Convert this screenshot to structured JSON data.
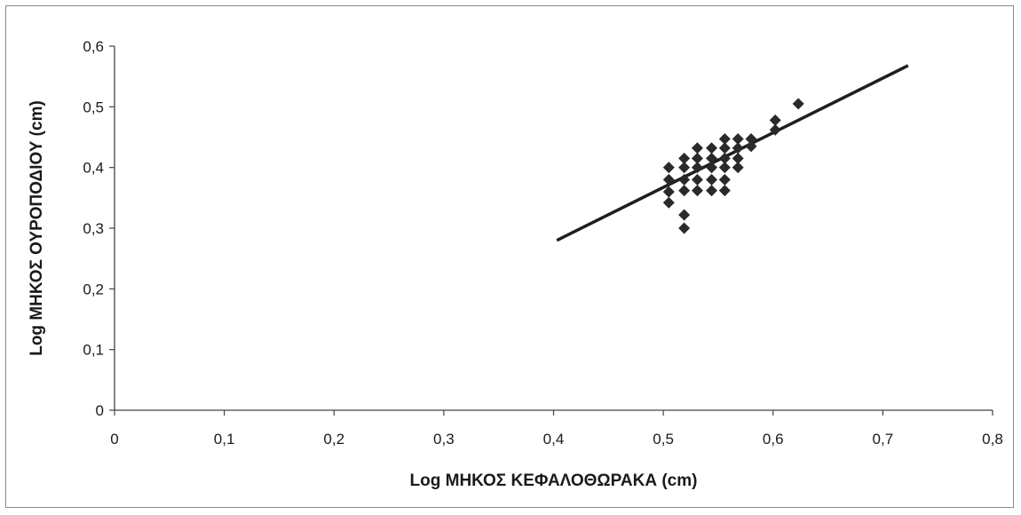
{
  "chart_data": {
    "type": "scatter",
    "title": "",
    "xlabel": "Log ΜΗΚΟΣ ΚΕΦΑΛΟΘΩΡΑΚΑ (cm)",
    "ylabel": "Log ΜΗΚΟΣ ΟΥΡΟΠΟΔΙΟΥ (cm)",
    "xlim": [
      0,
      0.8
    ],
    "ylim": [
      0,
      0.6
    ],
    "x_ticks": [
      0,
      0.1,
      0.2,
      0.3,
      0.4,
      0.5,
      0.6,
      0.7,
      0.8
    ],
    "y_ticks": [
      0,
      0.1,
      0.2,
      0.3,
      0.4,
      0.5,
      0.6
    ],
    "x_tick_labels": [
      "0",
      "0,1",
      "0,2",
      "0,3",
      "0,4",
      "0,5",
      "0,6",
      "0,7",
      "0,8"
    ],
    "y_tick_labels": [
      "0",
      "0,1",
      "0,2",
      "0,3",
      "0,4",
      "0,5",
      "0,6"
    ],
    "grid": false,
    "legend": "none",
    "marker_color": "#2a2a2a",
    "series": [
      {
        "values": [
          [
            0.505,
            0.4
          ],
          [
            0.505,
            0.38
          ],
          [
            0.505,
            0.36
          ],
          [
            0.505,
            0.342
          ],
          [
            0.519,
            0.415
          ],
          [
            0.519,
            0.4
          ],
          [
            0.519,
            0.38
          ],
          [
            0.519,
            0.362
          ],
          [
            0.519,
            0.322
          ],
          [
            0.519,
            0.3
          ],
          [
            0.531,
            0.432
          ],
          [
            0.531,
            0.415
          ],
          [
            0.531,
            0.4
          ],
          [
            0.531,
            0.38
          ],
          [
            0.531,
            0.362
          ],
          [
            0.544,
            0.432
          ],
          [
            0.544,
            0.415
          ],
          [
            0.544,
            0.4
          ],
          [
            0.544,
            0.38
          ],
          [
            0.544,
            0.362
          ],
          [
            0.556,
            0.447
          ],
          [
            0.556,
            0.432
          ],
          [
            0.556,
            0.415
          ],
          [
            0.556,
            0.4
          ],
          [
            0.556,
            0.38
          ],
          [
            0.556,
            0.362
          ],
          [
            0.568,
            0.447
          ],
          [
            0.568,
            0.432
          ],
          [
            0.568,
            0.415
          ],
          [
            0.568,
            0.4
          ],
          [
            0.58,
            0.447
          ],
          [
            0.58,
            0.435
          ],
          [
            0.602,
            0.478
          ],
          [
            0.602,
            0.462
          ],
          [
            0.623,
            0.505
          ]
        ]
      }
    ],
    "trendline": {
      "x": [
        0.403,
        0.723
      ],
      "y": [
        0.28,
        0.568
      ],
      "color": "#1e1e1e"
    }
  }
}
